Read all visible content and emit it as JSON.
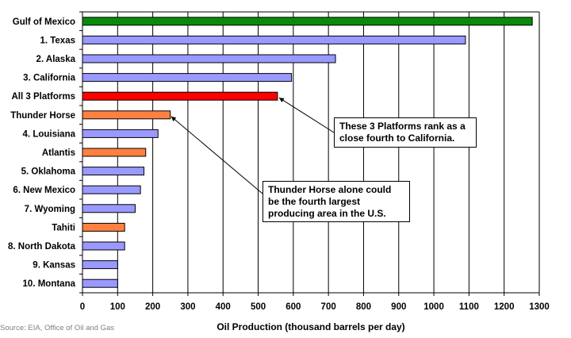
{
  "chart_data": {
    "type": "bar",
    "orientation": "horizontal",
    "categories": [
      "Gulf of Mexico",
      "1. Texas",
      "2. Alaska",
      "3. California",
      "All 3 Platforms",
      "Thunder Horse",
      "4. Louisiana",
      "Atlantis",
      "5. Oklahoma",
      "6. New Mexico",
      "7. Wyoming",
      "Tahiti",
      "8. North Dakota",
      "9. Kansas",
      "10. Montana"
    ],
    "values": [
      1280,
      1090,
      720,
      595,
      555,
      250,
      215,
      180,
      175,
      165,
      150,
      120,
      120,
      100,
      100
    ],
    "bar_colors": [
      "#0a8a0a",
      "#9999ff",
      "#9999ff",
      "#9999ff",
      "#ff0000",
      "#ff8040",
      "#9999ff",
      "#ff8040",
      "#9999ff",
      "#9999ff",
      "#9999ff",
      "#ff8040",
      "#9999ff",
      "#9999ff",
      "#9999ff"
    ],
    "xlabel": "Oil Production (thousand barrels per day)",
    "xlim": [
      0,
      1300
    ],
    "xticks": [
      0,
      100,
      200,
      300,
      400,
      500,
      600,
      700,
      800,
      900,
      1000,
      1100,
      1200,
      1300
    ],
    "grid": true,
    "annotations": [
      {
        "text": "These 3 Platforms rank as a close fourth to California.",
        "points_to": "All 3 Platforms"
      },
      {
        "text": "Thunder Horse alone could be the fourth largest producing area in the U.S.",
        "points_to": "Thunder Horse"
      }
    ]
  },
  "source": "Source: EIA, Office of Oil and Gas"
}
